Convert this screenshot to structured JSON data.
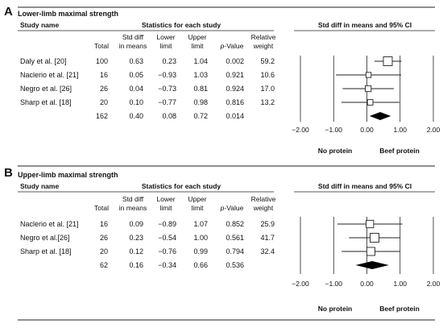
{
  "chart_data": [
    {
      "type": "forest",
      "panel": "A",
      "title": "Lower-limb maximal strength",
      "headers": {
        "study_name": "Study name",
        "stats_group": "Statistics for each study",
        "plot_group": "Std diff in means and 95% CI",
        "total": "Total",
        "std_diff_1": "Std diff",
        "std_diff_2": "in means",
        "lower_1": "Lower",
        "lower_2": "limit",
        "upper_1": "Upper",
        "upper_2": "limit",
        "pvalue_1": "p",
        "pvalue_2": "-Value",
        "weight_1": "Relative",
        "weight_2": "weight"
      },
      "studies": [
        {
          "name": "Daly et al. [20]",
          "total": "100",
          "smd": "0.63",
          "lower": "0.23",
          "upper": "1.04",
          "p": "0.002",
          "weight": "59.2",
          "smd_v": 0.63,
          "lower_v": 0.23,
          "upper_v": 1.04,
          "weight_v": 59.2
        },
        {
          "name": "Naclerio et al. [21]",
          "total": "16",
          "smd": "0.05",
          "lower": "−0.93",
          "upper": "1.03",
          "p": "0.921",
          "weight": "10.6",
          "smd_v": 0.05,
          "lower_v": -0.93,
          "upper_v": 1.03,
          "weight_v": 10.6
        },
        {
          "name": "Negro et al. [26]",
          "total": "26",
          "smd": "0.04",
          "lower": "−0.73",
          "upper": "0.81",
          "p": "0.924",
          "weight": "17.0",
          "smd_v": 0.04,
          "lower_v": -0.73,
          "upper_v": 0.81,
          "weight_v": 17.0
        },
        {
          "name": "Sharp et al. [18]",
          "total": "20",
          "smd": "0.10",
          "lower": "−0.77",
          "upper": "0.98",
          "p": "0.816",
          "weight": "13.2",
          "smd_v": 0.1,
          "lower_v": -0.77,
          "upper_v": 0.98,
          "weight_v": 13.2
        }
      ],
      "summary": {
        "total": "162",
        "smd": "0.40",
        "lower": "0.08",
        "upper": "0.72",
        "p": "0.014",
        "smd_v": 0.4,
        "lower_v": 0.08,
        "upper_v": 0.72
      },
      "xlim": [
        -2,
        2
      ],
      "x_ticks": [
        "−2.00",
        "−1.00",
        "0.00",
        "1.00",
        "2.00"
      ],
      "x_tick_values": [
        -2,
        -1,
        0,
        1,
        2
      ],
      "favours_left": "No protein",
      "favours_right": "Beef protein"
    },
    {
      "type": "forest",
      "panel": "B",
      "title": "Upper-limb maximal strength",
      "headers": {
        "study_name": "Study name",
        "stats_group": "Statistics for each study",
        "plot_group": "Std diff in means and 95% CI",
        "total": "Total",
        "std_diff_1": "Std diff",
        "std_diff_2": "in means",
        "lower_1": "Lower",
        "lower_2": "limit",
        "upper_1": "Upper",
        "upper_2": "limit",
        "pvalue_1": "p",
        "pvalue_2": "-Value",
        "weight_1": "Relative",
        "weight_2": "weight"
      },
      "studies": [
        {
          "name": "Naclerio et al. [21]",
          "total": "16",
          "smd": "0.09",
          "lower": "−0.89",
          "upper": "1.07",
          "p": "0.852",
          "weight": "25.9",
          "smd_v": 0.09,
          "lower_v": -0.89,
          "upper_v": 1.07,
          "weight_v": 25.9
        },
        {
          "name": "Negro et al.[26]",
          "total": "26",
          "smd": "0.23",
          "lower": "−0.54",
          "upper": "1.00",
          "p": "0.561",
          "weight": "41.7",
          "smd_v": 0.23,
          "lower_v": -0.54,
          "upper_v": 1.0,
          "weight_v": 41.7
        },
        {
          "name": "Sharp et al. [18]",
          "total": "20",
          "smd": "0.12",
          "lower": "−0.76",
          "upper": "0.99",
          "p": "0.794",
          "weight": "32.4",
          "smd_v": 0.12,
          "lower_v": -0.76,
          "upper_v": 0.99,
          "weight_v": 32.4
        }
      ],
      "summary": {
        "total": "62",
        "smd": "0.16",
        "lower": "−0.34",
        "upper": "0.66",
        "p": "0.536",
        "smd_v": 0.16,
        "lower_v": -0.34,
        "upper_v": 0.66
      },
      "xlim": [
        -2,
        2
      ],
      "x_ticks": [
        "−2.00",
        "−1.00",
        "0.00",
        "1.00",
        "2.00"
      ],
      "x_tick_values": [
        -2,
        -1,
        0,
        1,
        2
      ],
      "favours_left": "No protein",
      "favours_right": "Beef protein"
    }
  ]
}
